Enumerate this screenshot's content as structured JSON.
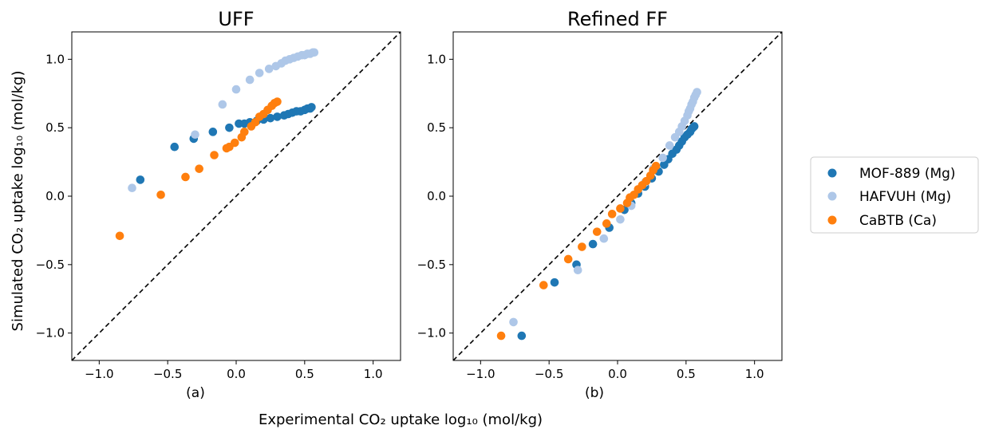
{
  "figure": {
    "xlabel": "Experimental CO₂ uptake log₁₀ (mol/kg)",
    "ylabel": "Simulated CO₂ uptake log₁₀ (mol/kg)"
  },
  "legend": {
    "placement": "right",
    "entries": [
      {
        "name": "MOF-889 (Mg)",
        "color": "#1f77b4"
      },
      {
        "name": "HAFVUH (Mg)",
        "color": "#aec7e8"
      },
      {
        "name": "CaBTB (Ca)",
        "color": "#ff7f0e"
      }
    ]
  },
  "chart_data": [
    {
      "type": "scatter",
      "title": "UFF",
      "sublabel": "(a)",
      "xlim": [
        -1.2,
        1.2
      ],
      "ylim": [
        -1.2,
        1.2
      ],
      "xticks": [
        "−1.0",
        "−0.5",
        "0.0",
        "0.5",
        "1.0"
      ],
      "yticks": [
        "−1.0",
        "−0.5",
        "0.0",
        "0.5",
        "1.0"
      ],
      "grid": false,
      "reference_line": "y = x (dashed)",
      "series": [
        {
          "name": "MOF-889 (Mg)",
          "color": "#1f77b4",
          "points": [
            [
              -0.7,
              0.12
            ],
            [
              -0.45,
              0.36
            ],
            [
              -0.31,
              0.42
            ],
            [
              -0.17,
              0.47
            ],
            [
              -0.05,
              0.5
            ],
            [
              0.02,
              0.53
            ],
            [
              0.06,
              0.53
            ],
            [
              0.1,
              0.54
            ],
            [
              0.15,
              0.55
            ],
            [
              0.2,
              0.56
            ],
            [
              0.25,
              0.57
            ],
            [
              0.3,
              0.58
            ],
            [
              0.35,
              0.59
            ],
            [
              0.38,
              0.6
            ],
            [
              0.41,
              0.61
            ],
            [
              0.44,
              0.62
            ],
            [
              0.47,
              0.62
            ],
            [
              0.5,
              0.63
            ],
            [
              0.52,
              0.64
            ],
            [
              0.54,
              0.64
            ],
            [
              0.55,
              0.65
            ]
          ]
        },
        {
          "name": "HAFVUH (Mg)",
          "color": "#aec7e8",
          "points": [
            [
              -0.76,
              0.06
            ],
            [
              -0.3,
              0.45
            ],
            [
              -0.1,
              0.67
            ],
            [
              0.0,
              0.78
            ],
            [
              0.1,
              0.85
            ],
            [
              0.17,
              0.9
            ],
            [
              0.24,
              0.93
            ],
            [
              0.29,
              0.95
            ],
            [
              0.33,
              0.97
            ],
            [
              0.36,
              0.99
            ],
            [
              0.39,
              1.0
            ],
            [
              0.42,
              1.01
            ],
            [
              0.45,
              1.02
            ],
            [
              0.48,
              1.03
            ],
            [
              0.5,
              1.03
            ],
            [
              0.52,
              1.04
            ],
            [
              0.54,
              1.04
            ],
            [
              0.56,
              1.05
            ],
            [
              0.57,
              1.05
            ]
          ]
        },
        {
          "name": "CaBTB (Ca)",
          "color": "#ff7f0e",
          "points": [
            [
              -0.85,
              -0.29
            ],
            [
              -0.55,
              0.01
            ],
            [
              -0.37,
              0.14
            ],
            [
              -0.27,
              0.2
            ],
            [
              -0.16,
              0.3
            ],
            [
              -0.07,
              0.35
            ],
            [
              -0.05,
              0.36
            ],
            [
              -0.01,
              0.39
            ],
            [
              0.04,
              0.43
            ],
            [
              0.06,
              0.47
            ],
            [
              0.11,
              0.51
            ],
            [
              0.14,
              0.54
            ],
            [
              0.17,
              0.58
            ],
            [
              0.2,
              0.6
            ],
            [
              0.23,
              0.63
            ],
            [
              0.26,
              0.66
            ],
            [
              0.28,
              0.68
            ],
            [
              0.3,
              0.69
            ]
          ]
        }
      ]
    },
    {
      "type": "scatter",
      "title": "Refined FF",
      "sublabel": "(b)",
      "xlim": [
        -1.2,
        1.2
      ],
      "ylim": [
        -1.2,
        1.2
      ],
      "xticks": [
        "−1.0",
        "−0.5",
        "0.0",
        "0.5",
        "1.0"
      ],
      "yticks": [
        "−1.0",
        "−0.5",
        "0.0",
        "0.5",
        "1.0"
      ],
      "grid": false,
      "reference_line": "y = x (dashed)",
      "series": [
        {
          "name": "MOF-889 (Mg)",
          "color": "#1f77b4",
          "points": [
            [
              -0.7,
              -1.02
            ],
            [
              -0.46,
              -0.63
            ],
            [
              -0.3,
              -0.5
            ],
            [
              -0.18,
              -0.35
            ],
            [
              -0.06,
              -0.23
            ],
            [
              0.05,
              -0.1
            ],
            [
              0.1,
              -0.05
            ],
            [
              0.15,
              0.02
            ],
            [
              0.2,
              0.07
            ],
            [
              0.25,
              0.13
            ],
            [
              0.3,
              0.18
            ],
            [
              0.34,
              0.23
            ],
            [
              0.37,
              0.27
            ],
            [
              0.4,
              0.31
            ],
            [
              0.43,
              0.34
            ],
            [
              0.45,
              0.37
            ],
            [
              0.47,
              0.4
            ],
            [
              0.49,
              0.43
            ],
            [
              0.51,
              0.45
            ],
            [
              0.53,
              0.47
            ],
            [
              0.54,
              0.49
            ],
            [
              0.55,
              0.5
            ],
            [
              0.56,
              0.51
            ]
          ]
        },
        {
          "name": "HAFVUH (Mg)",
          "color": "#aec7e8",
          "points": [
            [
              -0.76,
              -0.92
            ],
            [
              -0.29,
              -0.54
            ],
            [
              -0.1,
              -0.31
            ],
            [
              0.02,
              -0.17
            ],
            [
              0.1,
              -0.07
            ],
            [
              0.2,
              0.1
            ],
            [
              0.26,
              0.2
            ],
            [
              0.33,
              0.28
            ],
            [
              0.38,
              0.37
            ],
            [
              0.42,
              0.43
            ],
            [
              0.45,
              0.47
            ],
            [
              0.47,
              0.51
            ],
            [
              0.49,
              0.55
            ],
            [
              0.51,
              0.59
            ],
            [
              0.52,
              0.62
            ],
            [
              0.53,
              0.64
            ],
            [
              0.54,
              0.67
            ],
            [
              0.55,
              0.69
            ],
            [
              0.56,
              0.72
            ],
            [
              0.57,
              0.74
            ],
            [
              0.58,
              0.76
            ]
          ]
        },
        {
          "name": "CaBTB (Ca)",
          "color": "#ff7f0e",
          "points": [
            [
              -0.85,
              -1.02
            ],
            [
              -0.54,
              -0.65
            ],
            [
              -0.36,
              -0.46
            ],
            [
              -0.26,
              -0.37
            ],
            [
              -0.15,
              -0.26
            ],
            [
              -0.08,
              -0.2
            ],
            [
              -0.04,
              -0.13
            ],
            [
              0.02,
              -0.09
            ],
            [
              0.07,
              -0.05
            ],
            [
              0.09,
              -0.01
            ],
            [
              0.12,
              0.01
            ],
            [
              0.15,
              0.05
            ],
            [
              0.18,
              0.08
            ],
            [
              0.21,
              0.11
            ],
            [
              0.24,
              0.15
            ],
            [
              0.26,
              0.19
            ],
            [
              0.28,
              0.22
            ]
          ]
        }
      ]
    }
  ]
}
